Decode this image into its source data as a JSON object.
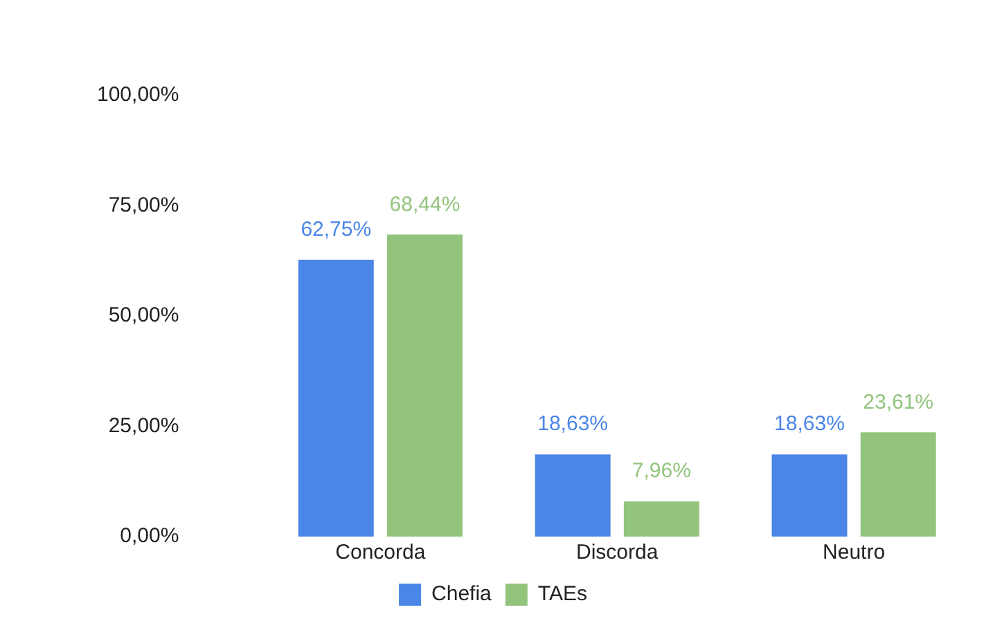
{
  "chart_data": {
    "type": "bar",
    "categories": [
      "Concorda",
      "Discorda",
      "Neutro"
    ],
    "series": [
      {
        "name": "Chefia",
        "color": "#4a86e8",
        "values": [
          62.75,
          18.63,
          18.63
        ],
        "value_labels": [
          "62,75%",
          "18,63%",
          "18,63%"
        ]
      },
      {
        "name": "TAEs",
        "color": "#93c47d",
        "values": [
          68.44,
          7.96,
          23.61
        ],
        "value_labels": [
          "68,44%",
          "7,96%",
          "23,61%"
        ]
      }
    ],
    "ylim": [
      0,
      100
    ],
    "yticks": [
      {
        "value": 0,
        "label": "0,00%"
      },
      {
        "value": 25,
        "label": "25,00%"
      },
      {
        "value": 50,
        "label": "50,00%"
      },
      {
        "value": 75,
        "label": "75,00%"
      },
      {
        "value": 100,
        "label": "100,00%"
      }
    ],
    "grid": false,
    "legend": "bottom"
  }
}
